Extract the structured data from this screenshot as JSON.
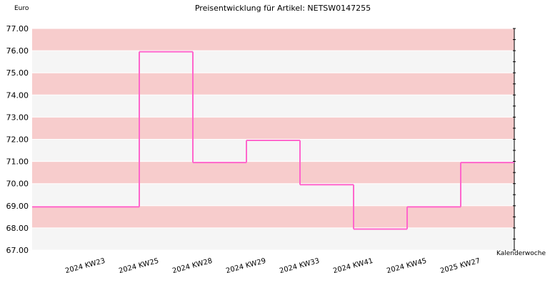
{
  "chart_data": {
    "type": "line",
    "step": true,
    "title": "Preisentwicklung für Artikel: NETSW0147255",
    "ylabel": "Euro",
    "xlabel": "Kalenderwoche",
    "ylim": [
      67.0,
      77.0
    ],
    "y_ticks": [
      "67.00",
      "68.00",
      "69.00",
      "70.00",
      "71.00",
      "72.00",
      "73.00",
      "74.00",
      "75.00",
      "76.00",
      "77.00"
    ],
    "categories": [
      "2024 KW23",
      "2024 KW25",
      "2024 KW28",
      "2024 KW29",
      "2024 KW33",
      "2024 KW41",
      "2024 KW45",
      "2025 KW27"
    ],
    "values": [
      68.95,
      75.95,
      70.95,
      71.95,
      69.95,
      67.95,
      68.95,
      70.95
    ],
    "grid": true,
    "colors": {
      "line": "#ff66cc",
      "band_dark": "#f7cccc",
      "band_light": "#f5f5f5"
    }
  }
}
